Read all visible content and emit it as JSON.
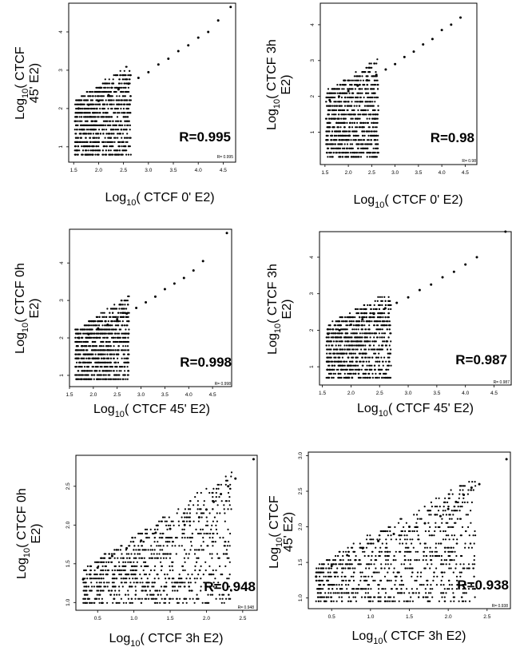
{
  "chart_data": [
    {
      "type": "scatter",
      "ylabel_lines": [
        "Log10( CTCF",
        "45' E2)"
      ],
      "xlabel": "Log10( CTCF 0' E2)",
      "xlim": [
        1.4,
        4.75
      ],
      "ylim": [
        0.6,
        4.75
      ],
      "xticks": [
        "1.5",
        "2.0",
        "2.5",
        "3.0",
        "3.5",
        "4.0",
        "4.5"
      ],
      "yticks": [
        "1",
        "2",
        "3",
        "4"
      ],
      "r_label": "R=0.995",
      "r_small": "R= 0.995",
      "points": {
        "x": [
          1.6,
          1.8,
          2.0,
          2.2,
          2.4,
          2.6,
          2.8,
          3.0,
          3.2,
          3.4,
          3.6,
          3.8,
          4.0,
          4.2,
          4.4,
          4.65
        ],
        "y": [
          2.0,
          2.1,
          2.2,
          2.35,
          2.5,
          2.65,
          2.8,
          2.95,
          3.15,
          3.3,
          3.5,
          3.65,
          3.85,
          4.0,
          4.3,
          4.65
        ]
      }
    },
    {
      "type": "scatter",
      "ylabel_lines": [
        "Log10( CTCF 3h",
        "E2)"
      ],
      "xlabel": "Log10( CTCF 0' E2)",
      "xlim": [
        1.4,
        4.75
      ],
      "ylim": [
        0.1,
        4.6
      ],
      "xticks": [
        "1.5",
        "2.0",
        "2.5",
        "3.0",
        "3.5",
        "4.0",
        "4.5"
      ],
      "yticks": [
        "1",
        "2",
        "3",
        "4"
      ],
      "r_label": "R=0.98",
      "r_small": "R= 0.98",
      "points": {
        "x": [
          1.6,
          1.8,
          2.0,
          2.2,
          2.4,
          2.6,
          2.8,
          3.0,
          3.2,
          3.4,
          3.6,
          3.8,
          4.0,
          4.2,
          4.4
        ],
        "y": [
          1.9,
          2.0,
          2.15,
          2.3,
          2.45,
          2.6,
          2.75,
          2.9,
          3.1,
          3.25,
          3.45,
          3.6,
          3.85,
          4.0,
          4.2
        ]
      }
    },
    {
      "type": "scatter",
      "ylabel_lines": [
        "Log10( CTCF 0h",
        "E2)"
      ],
      "xlabel": "Log10( CTCF 45' E2)",
      "xlim": [
        1.5,
        4.9
      ],
      "ylim": [
        0.7,
        4.9
      ],
      "xticks": [
        "1.5",
        "2.0",
        "2.5",
        "3.0",
        "3.5",
        "4.0",
        "4.5"
      ],
      "yticks": [
        "1",
        "2",
        "3",
        "4"
      ],
      "r_label": "R=0.998",
      "r_small": "R= 0.998",
      "points": {
        "x": [
          1.7,
          1.9,
          2.1,
          2.3,
          2.5,
          2.7,
          2.9,
          3.1,
          3.3,
          3.5,
          3.7,
          3.9,
          4.1,
          4.3,
          4.8
        ],
        "y": [
          2.0,
          2.1,
          2.25,
          2.35,
          2.5,
          2.65,
          2.8,
          2.95,
          3.1,
          3.3,
          3.45,
          3.6,
          3.8,
          4.05,
          4.8
        ]
      }
    },
    {
      "type": "scatter",
      "ylabel_lines": [
        "Log10( CTCF 3h",
        "E2)"
      ],
      "xlabel": "Log10( CTCF 45' E2)",
      "xlim": [
        1.45,
        4.8
      ],
      "ylim": [
        0.5,
        4.7
      ],
      "xticks": [
        "1.5",
        "2.0",
        "2.5",
        "3.0",
        "3.5",
        "4.0",
        "4.5"
      ],
      "yticks": [
        "1",
        "2",
        "3",
        "4"
      ],
      "r_label": "R=0.987",
      "r_small": "R= 0.987",
      "points": {
        "x": [
          1.6,
          1.8,
          2.0,
          2.2,
          2.4,
          2.6,
          2.8,
          3.0,
          3.2,
          3.4,
          3.6,
          3.8,
          4.0,
          4.2,
          4.7
        ],
        "y": [
          1.9,
          2.0,
          2.15,
          2.3,
          2.45,
          2.6,
          2.75,
          2.9,
          3.1,
          3.25,
          3.45,
          3.6,
          3.8,
          4.0,
          4.7
        ]
      }
    },
    {
      "type": "scatter",
      "ylabel_lines": [
        "Log10( CTCF 0h",
        "E2)"
      ],
      "xlabel": "Log10( CTCF 3h E2)",
      "xlim": [
        0.2,
        2.7
      ],
      "ylim": [
        0.9,
        2.9
      ],
      "xticks": [
        "0.5",
        "1.0",
        "1.5",
        "2.0",
        "2.5"
      ],
      "yticks": [
        "1.0",
        "1.5",
        "2.0",
        "2.5"
      ],
      "r_label": "R=0.948",
      "r_small": "R= 0.948",
      "points": {
        "x": [
          0.3,
          0.5,
          0.7,
          0.9,
          1.1,
          1.3,
          1.5,
          1.7,
          1.9,
          2.0,
          2.1,
          2.2,
          2.3,
          2.4,
          2.65
        ],
        "y": [
          1.3,
          1.45,
          1.6,
          1.7,
          1.8,
          1.9,
          1.95,
          2.0,
          2.1,
          2.2,
          2.3,
          2.4,
          2.5,
          2.6,
          2.85
        ]
      }
    },
    {
      "type": "scatter",
      "ylabel_lines": [
        "Log10( CTCF",
        "45' E2)"
      ],
      "xlabel": "Log10( CTCF 3h E2)",
      "xlim": [
        0.2,
        2.8
      ],
      "ylim": [
        0.85,
        3.05
      ],
      "xticks": [
        "0.5",
        "1.0",
        "1.5",
        "2.0",
        "2.5"
      ],
      "yticks": [
        "1.0",
        "1.5",
        "2.0",
        "2.5",
        "3.0"
      ],
      "r_label": "R=0.938",
      "r_small": "R= 0.938",
      "points": {
        "x": [
          0.3,
          0.5,
          0.7,
          0.9,
          1.1,
          1.3,
          1.5,
          1.7,
          1.9,
          2.0,
          2.1,
          2.2,
          2.3,
          2.4,
          2.75
        ],
        "y": [
          1.3,
          1.45,
          1.6,
          1.7,
          1.8,
          1.9,
          2.0,
          2.05,
          2.15,
          2.25,
          2.35,
          2.45,
          2.55,
          2.6,
          2.95
        ]
      }
    }
  ]
}
